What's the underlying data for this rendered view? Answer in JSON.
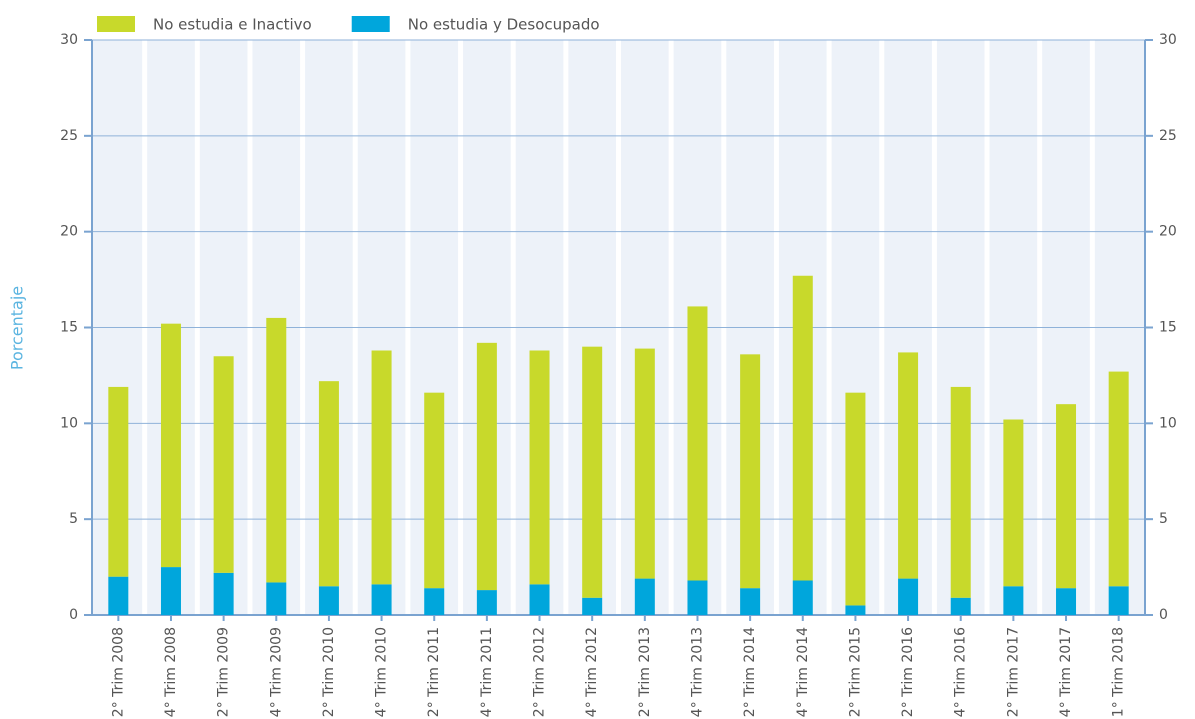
{
  "chart_data": {
    "type": "stacked_bar",
    "categories": [
      "2° Trim 2008",
      "4° Trim 2008",
      "2° Trim 2009",
      "4° Trim 2009",
      "2° Trim 2010",
      "4° Trim 2010",
      "2° Trim 2011",
      "4° Trim 2011",
      "2° Trim 2012",
      "4° Trim 2012",
      "2° Trim 2013",
      "4° Trim 2013",
      "2° Trim 2014",
      "4° Trim 2014",
      "2° Trim 2015",
      "2° Trim 2016",
      "4° Trim 2016",
      "2° Trim 2017",
      "4° Trim 2017",
      "1° Trim 2018"
    ],
    "series": [
      {
        "name": "No estudia e Inactivo",
        "color": "#c8d92b",
        "values": [
          9.9,
          12.7,
          11.3,
          13.8,
          10.7,
          12.2,
          10.2,
          12.9,
          12.2,
          13.1,
          12.0,
          14.3,
          12.2,
          15.9,
          11.1,
          11.8,
          11.0,
          8.7,
          9.6,
          11.2
        ]
      },
      {
        "name": "No estudia y Desocupado",
        "color": "#00a6dc",
        "values": [
          2.0,
          2.5,
          2.2,
          1.7,
          1.5,
          1.6,
          1.4,
          1.3,
          1.6,
          0.9,
          1.9,
          1.8,
          1.4,
          1.8,
          0.5,
          1.9,
          0.9,
          1.5,
          1.4,
          1.5
        ]
      }
    ],
    "y_label": "Porcentaje",
    "ylim": [
      0,
      30
    ],
    "yticks": [
      0,
      5,
      10,
      15,
      20,
      25,
      30
    ],
    "grid": true,
    "legend": "top-left"
  }
}
